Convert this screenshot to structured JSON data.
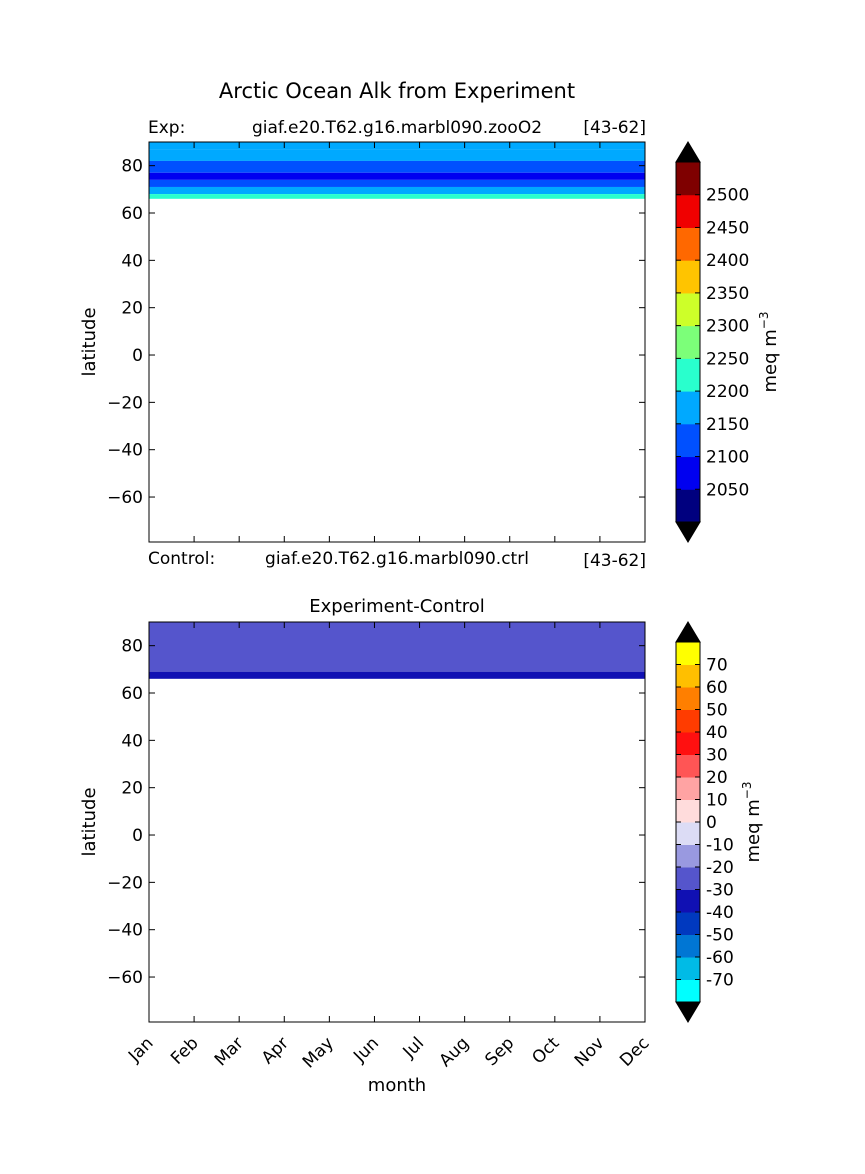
{
  "figure": {
    "title": "Arctic Ocean Alk from Experiment"
  },
  "chart_data": [
    {
      "type": "heatmap",
      "subplot": "top",
      "header_left_label": "Exp:",
      "header_center": "giaf.e20.T62.g16.marbl090.zooO2",
      "header_right": "[43-62]",
      "footer_left_label": "Control:",
      "footer_center": "giaf.e20.T62.g16.marbl090.ctrl",
      "footer_right": "[43-62]",
      "ylabel": "latitude",
      "xlabel": "",
      "yticks": [
        80,
        60,
        40,
        20,
        0,
        -20,
        -40,
        -60
      ],
      "ytick_labels": [
        "80",
        "60",
        "40",
        "20",
        "0",
        "−20",
        "−40",
        "−60"
      ],
      "ylim": [
        -79,
        90
      ],
      "xlim": [
        0,
        11
      ],
      "colorbar": {
        "label": "meq m",
        "label_superscript": "−3",
        "tick_labels": [
          "2050",
          "2100",
          "2150",
          "2200",
          "2250",
          "2300",
          "2350",
          "2400",
          "2450",
          "2500"
        ],
        "colors": [
          "#00007f",
          "#0000f0",
          "#0050ff",
          "#00a9ff",
          "#29ffcd",
          "#7cff79",
          "#cdff29",
          "#ffc400",
          "#ff6800",
          "#f00000",
          "#7f0000"
        ],
        "under_color": "#000000",
        "over_color": "#000000"
      },
      "bands": [
        {
          "lat_top": 90,
          "lat_bottom": 87,
          "color": "#00a9ff"
        },
        {
          "lat_top": 87,
          "lat_bottom": 82,
          "color": "#00a9ff"
        },
        {
          "lat_top": 82,
          "lat_bottom": 77,
          "color": "#0050ff"
        },
        {
          "lat_top": 77,
          "lat_bottom": 74,
          "color": "#0000f0"
        },
        {
          "lat_top": 74,
          "lat_bottom": 71,
          "color": "#0050ff"
        },
        {
          "lat_top": 71,
          "lat_bottom": 68,
          "color": "#00a9ff"
        },
        {
          "lat_top": 68,
          "lat_bottom": 66,
          "color": "#29ffcd"
        }
      ]
    },
    {
      "type": "heatmap",
      "subplot": "bottom",
      "title": "Experiment-Control",
      "ylabel": "latitude",
      "xlabel": "month",
      "categories": [
        "Jan",
        "Feb",
        "Mar",
        "Apr",
        "May",
        "Jun",
        "Jul",
        "Aug",
        "Sep",
        "Oct",
        "Nov",
        "Dec"
      ],
      "yticks": [
        80,
        60,
        40,
        20,
        0,
        -20,
        -40,
        -60
      ],
      "ytick_labels": [
        "80",
        "60",
        "40",
        "20",
        "0",
        "−20",
        "−40",
        "−60"
      ],
      "ylim": [
        -79,
        90
      ],
      "xlim": [
        0,
        11
      ],
      "colorbar": {
        "label": "meq m",
        "label_superscript": "−3",
        "tick_labels": [
          "-70",
          "-60",
          "-50",
          "-40",
          "-30",
          "-20",
          "-10",
          "0",
          "10",
          "20",
          "30",
          "40",
          "50",
          "60",
          "70"
        ],
        "colors": [
          "#00ffff",
          "#00bbe6",
          "#0076d4",
          "#0039bf",
          "#1010b3",
          "#5555cc",
          "#9999e0",
          "#dcdcf5",
          "#ffdcdc",
          "#ffa3a3",
          "#ff5555",
          "#ff1010",
          "#ff3c00",
          "#ff7f00",
          "#ffbf00",
          "#ffff00"
        ],
        "under_color": "#000000",
        "over_color": "#000000"
      },
      "bands": [
        {
          "lat_top": 90,
          "lat_bottom": 69,
          "color": "#5555cc"
        },
        {
          "lat_top": 69,
          "lat_bottom": 66,
          "color": "#1010b3"
        }
      ]
    }
  ]
}
